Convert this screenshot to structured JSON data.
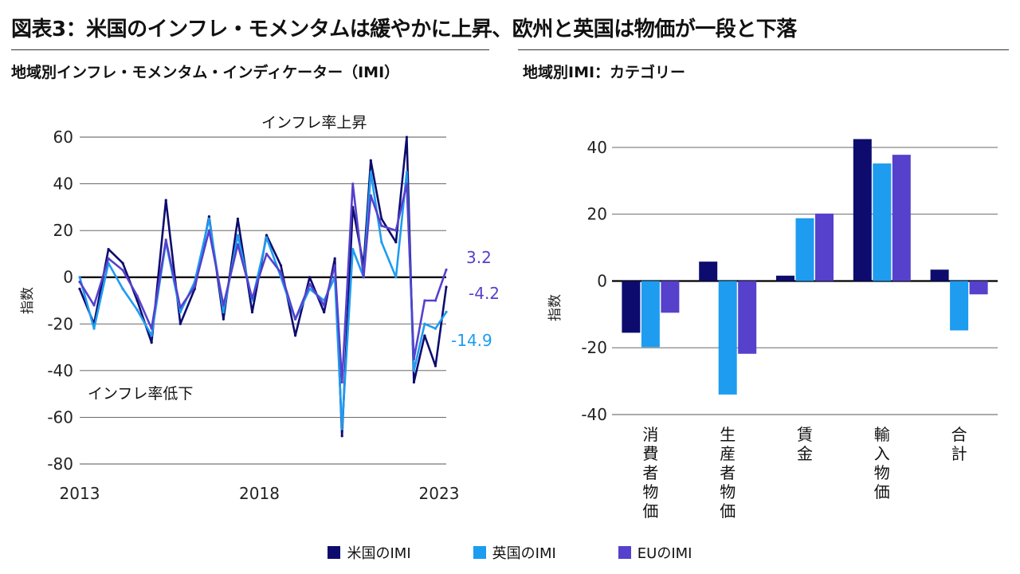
{
  "title": "図表3：米国のインフレ・モメンタムは緩やかに上昇、欧州と英国は物価が一段と下落",
  "colors": {
    "us": "#0d0c6e",
    "uk": "#1e9cf0",
    "eu": "#5541cc",
    "axis": "#000000",
    "grid": "#555555"
  },
  "legend": [
    {
      "label": "米国のIMI",
      "color": "#0d0c6e"
    },
    {
      "label": "英国のIMI",
      "color": "#1e9cf0"
    },
    {
      "label": "EUのIMI",
      "color": "#5541cc"
    }
  ],
  "chart_data": [
    {
      "type": "line",
      "title": "地域別インフレ・モメンタム・インディケーター（IMI）",
      "ylabel": "指数",
      "ylim": [
        -80,
        60
      ],
      "yticks": [
        60,
        40,
        20,
        0,
        -20,
        -40,
        -60,
        -80
      ],
      "xlim": [
        2013,
        2023.2
      ],
      "xticks": [
        2013,
        2018,
        2023
      ],
      "annotations": [
        {
          "text": "インフレ率上昇"
        },
        {
          "text": "インフレ率低下"
        }
      ],
      "end_labels": [
        {
          "text": "3.2",
          "value": 3.2,
          "series": "EUのIMI"
        },
        {
          "text": "-4.2",
          "value": -4.2,
          "series": "米国のIMI"
        },
        {
          "text": "-14.9",
          "value": -14.9,
          "series": "英国のIMI"
        }
      ],
      "x": [
        2013.0,
        2013.4,
        2013.8,
        2014.2,
        2014.6,
        2015.0,
        2015.4,
        2015.8,
        2016.2,
        2016.6,
        2017.0,
        2017.4,
        2017.8,
        2018.2,
        2018.6,
        2019.0,
        2019.4,
        2019.8,
        2020.1,
        2020.3,
        2020.6,
        2020.9,
        2021.1,
        2021.4,
        2021.8,
        2022.1,
        2022.3,
        2022.6,
        2022.9,
        2023.2
      ],
      "series": [
        {
          "name": "米国のIMI",
          "color": "#0d0c6e",
          "values": [
            -5,
            -20,
            12,
            6,
            -10,
            -28,
            33,
            -20,
            -5,
            26,
            -18,
            25,
            -15,
            18,
            5,
            -25,
            0,
            -15,
            8,
            -68,
            30,
            5,
            50,
            25,
            15,
            60,
            -45,
            -25,
            -38,
            -4.2
          ]
        },
        {
          "name": "英国のIMI",
          "color": "#1e9cf0",
          "values": [
            0,
            -22,
            6,
            -5,
            -14,
            -25,
            15,
            -15,
            -2,
            25,
            -15,
            18,
            -10,
            17,
            0,
            -18,
            -5,
            -10,
            0,
            -65,
            12,
            0,
            45,
            15,
            0,
            45,
            -40,
            -20,
            -22,
            -14.9
          ]
        },
        {
          "name": "EUのIMI",
          "color": "#5541cc",
          "values": [
            -2,
            -12,
            8,
            3,
            -8,
            -22,
            16,
            -13,
            -4,
            20,
            -12,
            14,
            -9,
            10,
            2,
            -18,
            -3,
            -12,
            5,
            -45,
            40,
            0,
            35,
            22,
            20,
            40,
            -35,
            -10,
            -10,
            3.2
          ]
        }
      ]
    },
    {
      "type": "bar",
      "title": "地域別IMI：カテゴリー",
      "ylabel": "指数",
      "ylim": [
        -40,
        45
      ],
      "yticks": [
        40,
        20,
        0,
        -20,
        -40
      ],
      "categories": [
        "消費者物価",
        "生産者物価",
        "賃金",
        "輸入物価",
        "合計"
      ],
      "series": [
        {
          "name": "米国のIMI",
          "color": "#0d0c6e",
          "values": [
            -15.5,
            5.8,
            1.6,
            42.5,
            3.4
          ]
        },
        {
          "name": "英国のIMI",
          "color": "#1e9cf0",
          "values": [
            -19.8,
            -34.0,
            18.8,
            35.2,
            -14.8
          ]
        },
        {
          "name": "EUのIMI",
          "color": "#5541cc",
          "values": [
            -9.5,
            -21.8,
            20.2,
            37.8,
            -4.0
          ]
        }
      ]
    }
  ]
}
